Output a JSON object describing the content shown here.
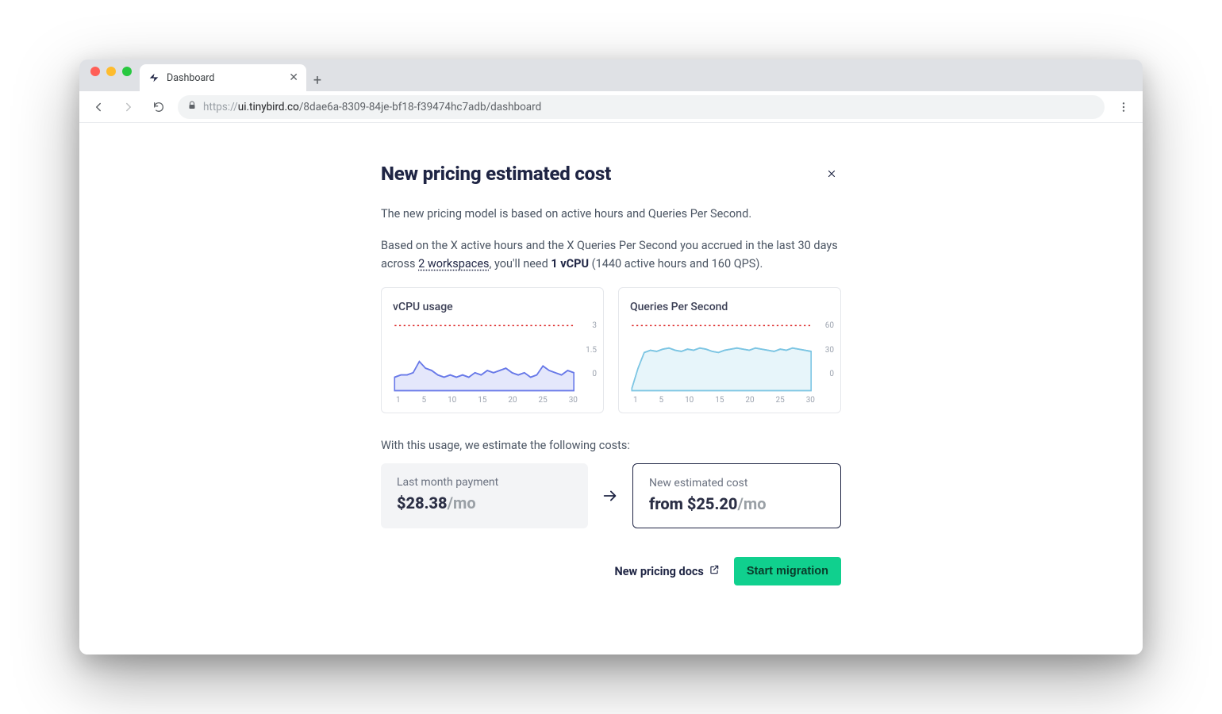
{
  "browser": {
    "tab_title": "Dashboard",
    "url_protocol": "https://",
    "url_host": "ui.tinybird.co",
    "url_path": "/8dae6a-8309-84je-bf18-f39474hc7adb/dashboard"
  },
  "panel": {
    "title": "New pricing estimated cost",
    "desc1": "The new pricing model is based on active hours and Queries Per Second.",
    "desc2_prefix": "Based on the X active hours and the X Queries Per Second you accrued in the last 30 days across ",
    "workspaces_link": "2 workspaces",
    "desc2_mid": ", you'll need ",
    "vcpu_bold": "1 vCPU",
    "desc2_suffix": " (1440 active hours and 160 QPS).",
    "estimate_intro": "With this usage, we estimate the following costs:",
    "docs_label": "New pricing docs",
    "migrate_label": "Start migration"
  },
  "vcpu_chart": {
    "type": "area",
    "title": "vCPU usage",
    "x_ticks": [
      "1",
      "5",
      "10",
      "15",
      "20",
      "25",
      "30"
    ],
    "y_ticks": [
      "3",
      "1.5",
      "0"
    ],
    "ylim": [
      0,
      3
    ],
    "threshold_y": 2.9,
    "threshold_color": "#dc2626",
    "line_color": "#6879e8",
    "fill_color": "#6879e8",
    "background_color": "#ffffff",
    "values": [
      0.6,
      0.7,
      0.7,
      0.8,
      1.3,
      1.0,
      0.9,
      0.7,
      0.6,
      0.7,
      0.6,
      0.7,
      0.6,
      0.8,
      0.7,
      0.9,
      0.8,
      0.9,
      1.0,
      0.8,
      0.7,
      0.8,
      0.6,
      0.7,
      1.1,
      0.9,
      0.8,
      0.7,
      0.9,
      0.8
    ]
  },
  "qps_chart": {
    "type": "area",
    "title": "Queries Per Second",
    "x_ticks": [
      "1",
      "5",
      "10",
      "15",
      "20",
      "25",
      "30"
    ],
    "y_ticks": [
      "60",
      "30",
      "0"
    ],
    "ylim": [
      0,
      60
    ],
    "threshold_y": 58,
    "threshold_color": "#dc2626",
    "line_color": "#7cc5e3",
    "fill_color": "#7cc5e3",
    "background_color": "#ffffff",
    "values": [
      2,
      20,
      34,
      36,
      35,
      37,
      38,
      36,
      35,
      37,
      36,
      38,
      37,
      35,
      34,
      36,
      37,
      38,
      37,
      36,
      38,
      37,
      36,
      35,
      37,
      36,
      38,
      37,
      36,
      35
    ]
  },
  "prev_cost": {
    "label": "Last month payment",
    "amount": "$28.38",
    "per": "/mo"
  },
  "new_cost": {
    "label": "New estimated cost",
    "prefix": "from ",
    "amount": "$25.20",
    "per": "/mo"
  },
  "colors": {
    "accent": "#10d08e",
    "text_dark": "#1f2544",
    "border": "#e5e7eb"
  }
}
